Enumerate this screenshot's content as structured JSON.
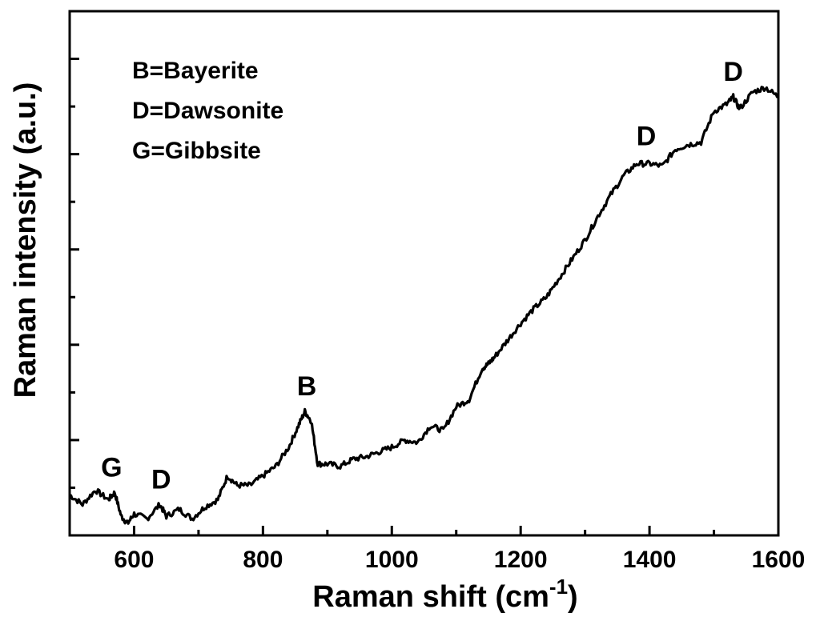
{
  "chart_data": {
    "type": "line",
    "xlabel": "Raman shift (cm",
    "xlabel_superscript": "-1",
    "xlabel_close": ")",
    "ylabel": "Raman intensity (a.u.)",
    "xlim": [
      500,
      1600
    ],
    "ylim": [
      0,
      11
    ],
    "x_ticks": [
      600,
      800,
      1000,
      1200,
      1400,
      1600
    ],
    "y_tick_labels_shown": false,
    "grid": false,
    "legend_placement": "top-left",
    "legend_entries": [
      "B=Bayerite",
      "D=Dawsonite",
      "G=Gibbsite"
    ],
    "series": [
      {
        "x": [
          500,
          520,
          540,
          560,
          570,
          580,
          590,
          600,
          620,
          640,
          650,
          670,
          690,
          710,
          730,
          745,
          760,
          780,
          800,
          820,
          840,
          855,
          865,
          875,
          885,
          900,
          920,
          940,
          960,
          980,
          1000,
          1020,
          1040,
          1060,
          1080,
          1100,
          1120,
          1140,
          1150,
          1160,
          1180,
          1200,
          1220,
          1240,
          1260,
          1280,
          1300,
          1320,
          1340,
          1360,
          1380,
          1400,
          1420,
          1440,
          1460,
          1480,
          1500,
          1520,
          1530,
          1540,
          1560,
          1580,
          1600
        ],
        "y": [
          0.85,
          0.65,
          0.95,
          0.75,
          0.9,
          0.4,
          0.25,
          0.45,
          0.35,
          0.65,
          0.4,
          0.55,
          0.35,
          0.6,
          0.75,
          1.25,
          1.05,
          1.05,
          1.25,
          1.45,
          1.85,
          2.3,
          2.6,
          2.4,
          1.5,
          1.5,
          1.45,
          1.6,
          1.65,
          1.75,
          1.85,
          2.0,
          1.95,
          2.3,
          2.2,
          2.7,
          2.85,
          3.5,
          3.6,
          3.75,
          4.1,
          4.45,
          4.75,
          5.0,
          5.4,
          5.8,
          6.2,
          6.7,
          7.15,
          7.55,
          7.8,
          7.8,
          7.75,
          8.1,
          8.2,
          8.25,
          8.9,
          9.05,
          9.2,
          8.95,
          9.3,
          9.4,
          9.2
        ]
      }
    ],
    "annotations": [
      {
        "text": "G",
        "x": 565,
        "y": 0.9
      },
      {
        "text": "D",
        "x": 642,
        "y": 0.65
      },
      {
        "text": "B",
        "x": 868,
        "y": 2.6
      },
      {
        "text": "D",
        "x": 1395,
        "y": 7.85
      },
      {
        "text": "D",
        "x": 1530,
        "y": 9.2
      }
    ]
  }
}
